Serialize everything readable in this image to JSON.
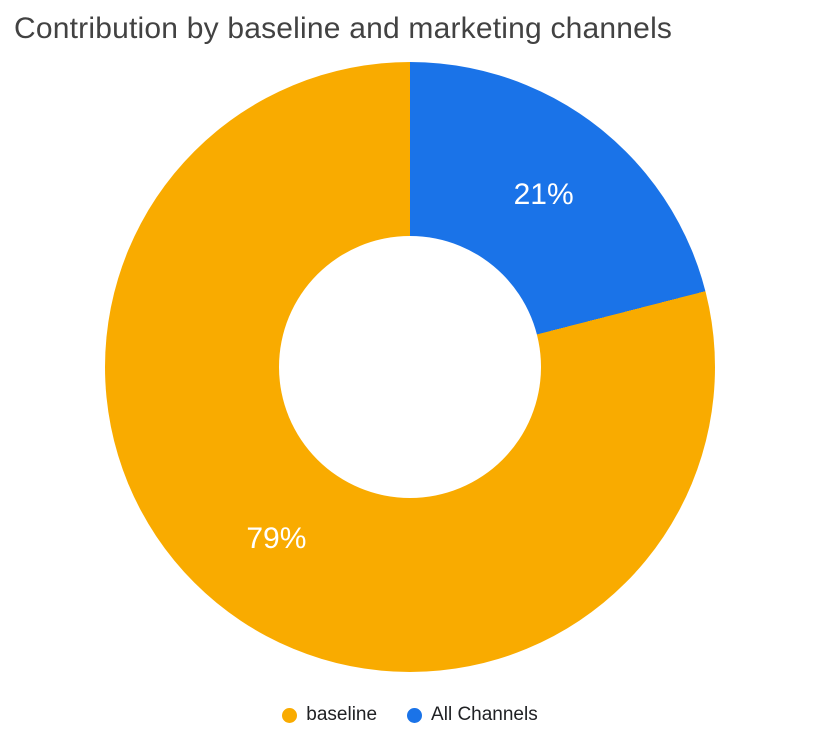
{
  "chart_data": {
    "type": "pie",
    "subtype": "donut",
    "title": "Contribution by baseline and marketing channels",
    "donut_hole_ratio": 0.43,
    "rotation_deg": 0,
    "direction": "clockwise",
    "slices": [
      {
        "label": "All Channels",
        "value": 21,
        "pct_label": "21%",
        "color": "#1A73E8"
      },
      {
        "label": "baseline",
        "value": 79,
        "pct_label": "79%",
        "color": "#F9AB00"
      }
    ],
    "legend": {
      "position": "bottom",
      "items": [
        {
          "label": "baseline",
          "color": "#F9AB00"
        },
        {
          "label": "All Channels",
          "color": "#1A73E8"
        }
      ]
    }
  }
}
